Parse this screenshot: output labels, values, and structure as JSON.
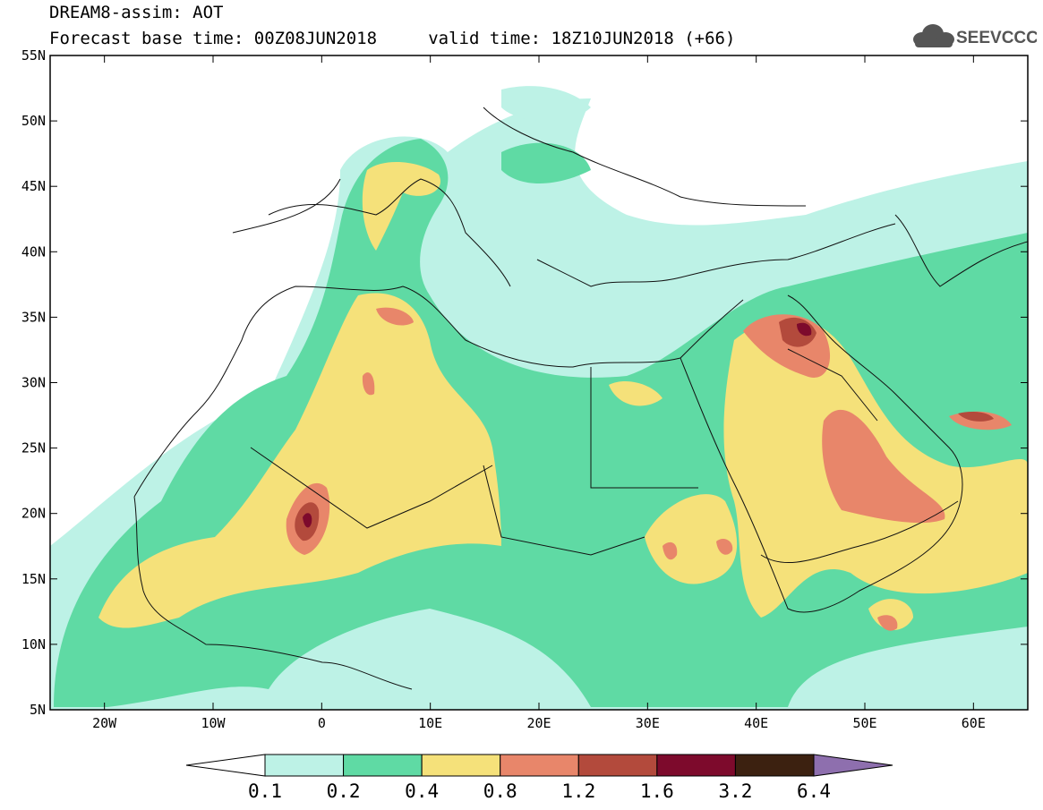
{
  "title": {
    "line1": "DREAM8-assim: AOT",
    "line2": "Forecast base time: 00Z08JUN2018     valid time: 18Z10JUN2018 (+66)"
  },
  "logo": {
    "text": "SEEVCCC"
  },
  "axes": {
    "lat_labels": [
      "55N",
      "50N",
      "45N",
      "40N",
      "35N",
      "30N",
      "25N",
      "20N",
      "15N",
      "10N",
      "5N"
    ],
    "lon_labels": [
      "20W",
      "10W",
      "0",
      "10E",
      "20E",
      "30E",
      "40E",
      "50E",
      "60E"
    ],
    "lat_range": [
      5,
      55
    ],
    "lon_range": [
      -25,
      65
    ]
  },
  "colorbar": {
    "labels": [
      "0.1",
      "0.2",
      "0.4",
      "0.8",
      "1.2",
      "1.6",
      "3.2",
      "6.4"
    ],
    "colors": [
      "#ffffff",
      "#bdf2e6",
      "#5fdaa4",
      "#f5e17a",
      "#e8866a",
      "#b34a3c",
      "#7d0a2c",
      "#3c2110",
      "#8e6fae"
    ]
  },
  "colors": {
    "c1": "#bdf2e6",
    "c2": "#5fdaa4",
    "c3": "#f5e17a",
    "c4": "#e8866a",
    "c5": "#b34a3c",
    "c6": "#7d0a2c"
  }
}
